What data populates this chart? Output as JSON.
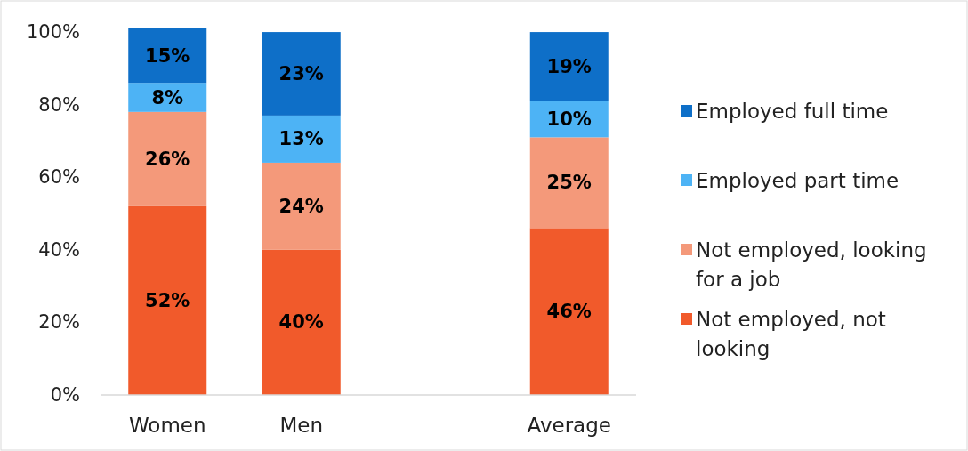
{
  "chart_data": {
    "type": "bar",
    "stacked": true,
    "categories": [
      "Women",
      "Men",
      null,
      "Average"
    ],
    "series": [
      {
        "name": "Not employed, not looking",
        "color": "#f15a2b",
        "values": [
          52,
          40,
          null,
          46
        ],
        "value_labels": [
          "52%",
          "40%",
          null,
          "46%"
        ]
      },
      {
        "name": "Not employed, looking for a job",
        "color": "#f4997a",
        "values": [
          26,
          24,
          null,
          25
        ],
        "value_labels": [
          "26%",
          "24%",
          null,
          "25%"
        ]
      },
      {
        "name": "Employed part time",
        "color": "#4db3f5",
        "values": [
          8,
          13,
          null,
          10
        ],
        "value_labels": [
          "8%",
          "13%",
          null,
          "10%"
        ]
      },
      {
        "name": "Employed full time",
        "color": "#0e6fc8",
        "values": [
          15,
          23,
          null,
          19
        ],
        "value_labels": [
          "15%",
          "23%",
          null,
          "19%"
        ]
      }
    ],
    "ylim": [
      0,
      101
    ],
    "yticks": [
      {
        "value": 0,
        "label": "0%"
      },
      {
        "value": 20,
        "label": "20%"
      },
      {
        "value": 40,
        "label": "40%"
      },
      {
        "value": 60,
        "label": "60%"
      },
      {
        "value": 80,
        "label": "80%"
      },
      {
        "value": 100,
        "label": "100%"
      }
    ],
    "grid": false,
    "legend": "right"
  }
}
